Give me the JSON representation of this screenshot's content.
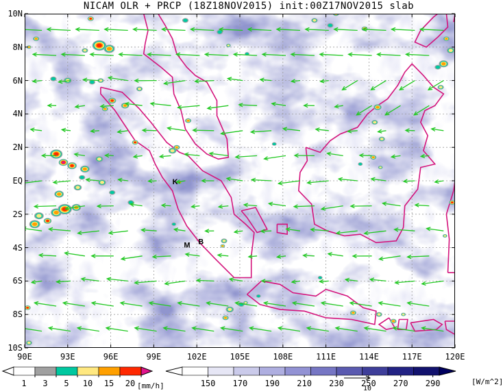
{
  "title": "NICAM OLR + PRCP (18Z18NOV2015) init:00Z17NOV2015 slab",
  "map": {
    "lat_labels": [
      "10N",
      "8N",
      "6N",
      "4N",
      "2N",
      "EQ",
      "2S",
      "4S",
      "6S",
      "8S",
      "10S"
    ],
    "lon_labels": [
      "90E",
      "93E",
      "96E",
      "99E",
      "102E",
      "105E",
      "108E",
      "111E",
      "114E",
      "117E",
      "120E"
    ],
    "extent": {
      "lon": [
        90,
        120
      ],
      "lat": [
        -10,
        10
      ]
    },
    "place_labels": [
      {
        "text": "K",
        "lon": 100.3,
        "lat": -0.2
      },
      {
        "text": "M",
        "lon": 101.1,
        "lat": -4.0
      },
      {
        "text": "B",
        "lon": 102.1,
        "lat": -3.8
      }
    ],
    "coastline_color": "#d4147c",
    "vector_color": "#22c822",
    "grid_style": "dotted",
    "vector_reference": "10"
  },
  "precip_bar": {
    "unit": "[mm/h]",
    "ticks": [
      "1",
      "3",
      "5",
      "10",
      "15",
      "20"
    ],
    "colors": [
      "#ffffff",
      "#a0a0a0",
      "#00c8a0",
      "#ffe880",
      "#ffa000",
      "#ff2800",
      "#e0148c"
    ]
  },
  "olr_bar": {
    "unit": "[W/m^2]",
    "ticks": [
      "150",
      "170",
      "190",
      "210",
      "230",
      "250",
      "270",
      "290"
    ],
    "colors": [
      "#ffffff",
      "#e6e6f5",
      "#cacaea",
      "#aeaee0",
      "#9292d4",
      "#7676c4",
      "#5a5ab0",
      "#3e3e9a",
      "#222284",
      "#12126e",
      "#000060"
    ]
  }
}
